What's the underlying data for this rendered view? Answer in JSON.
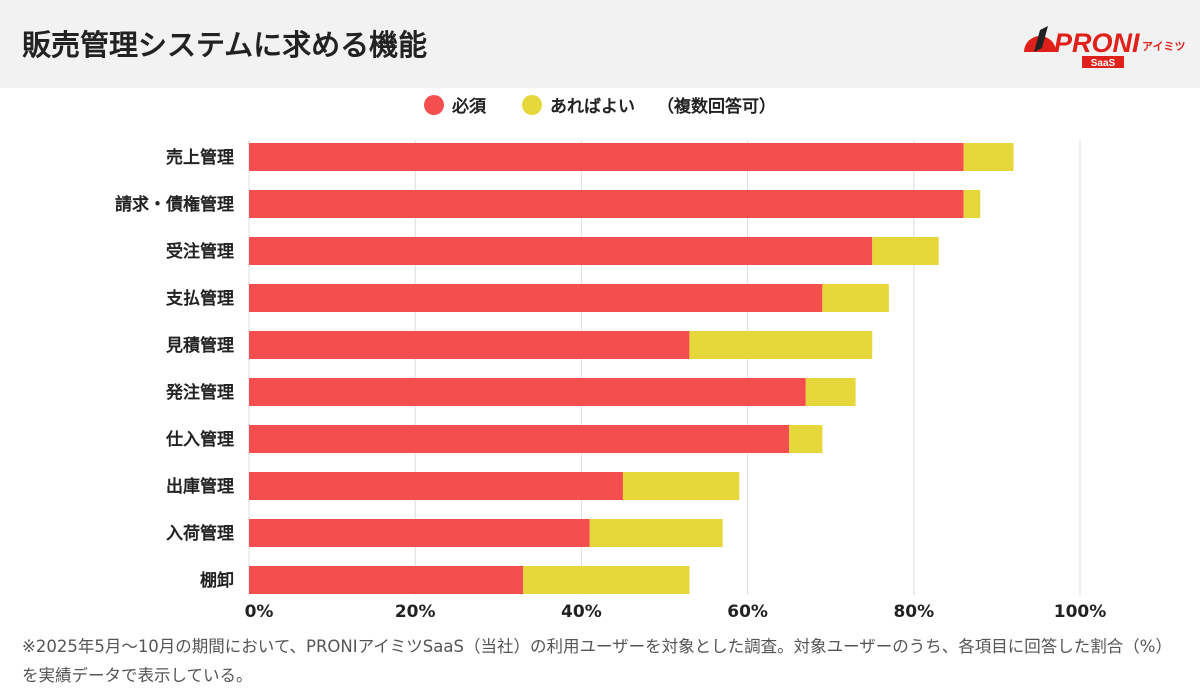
{
  "header": {
    "title": "販売管理システムに求める機能",
    "logo_text": "PRONI",
    "logo_sub": "アイミツ",
    "logo_badge": "SaaS"
  },
  "legend": {
    "items": [
      {
        "label": "必須",
        "color": "#f44e4e"
      },
      {
        "label": "あればよい",
        "color": "#e6d73b"
      }
    ],
    "note": "（複数回答可）"
  },
  "chart_data": {
    "type": "bar",
    "orientation": "horizontal",
    "stacked": true,
    "categories": [
      "売上管理",
      "請求・債権管理",
      "受注管理",
      "支払管理",
      "見積管理",
      "発注管理",
      "仕入管理",
      "出庫管理",
      "入荷管理",
      "棚卸"
    ],
    "series": [
      {
        "name": "必須",
        "color": "#f44e4e",
        "values": [
          86,
          86,
          75,
          69,
          53,
          67,
          65,
          45,
          41,
          33
        ]
      },
      {
        "name": "あればよい",
        "color": "#e6d73b",
        "values": [
          6,
          2,
          8,
          8,
          22,
          6,
          4,
          14,
          16,
          20
        ]
      }
    ],
    "xlim": [
      0,
      100
    ],
    "xticks": [
      "0%",
      "20%",
      "40%",
      "60%",
      "80%",
      "100%"
    ],
    "grid": true,
    "legend_position": "top"
  },
  "footnote": "※2025年5月〜10月の期間において、PRONIアイミツSaaS（当社）の利用ユーザーを対象とした調査。対象ユーザーのうち、各項目に回答した割合（%）を実績データで表示している。"
}
